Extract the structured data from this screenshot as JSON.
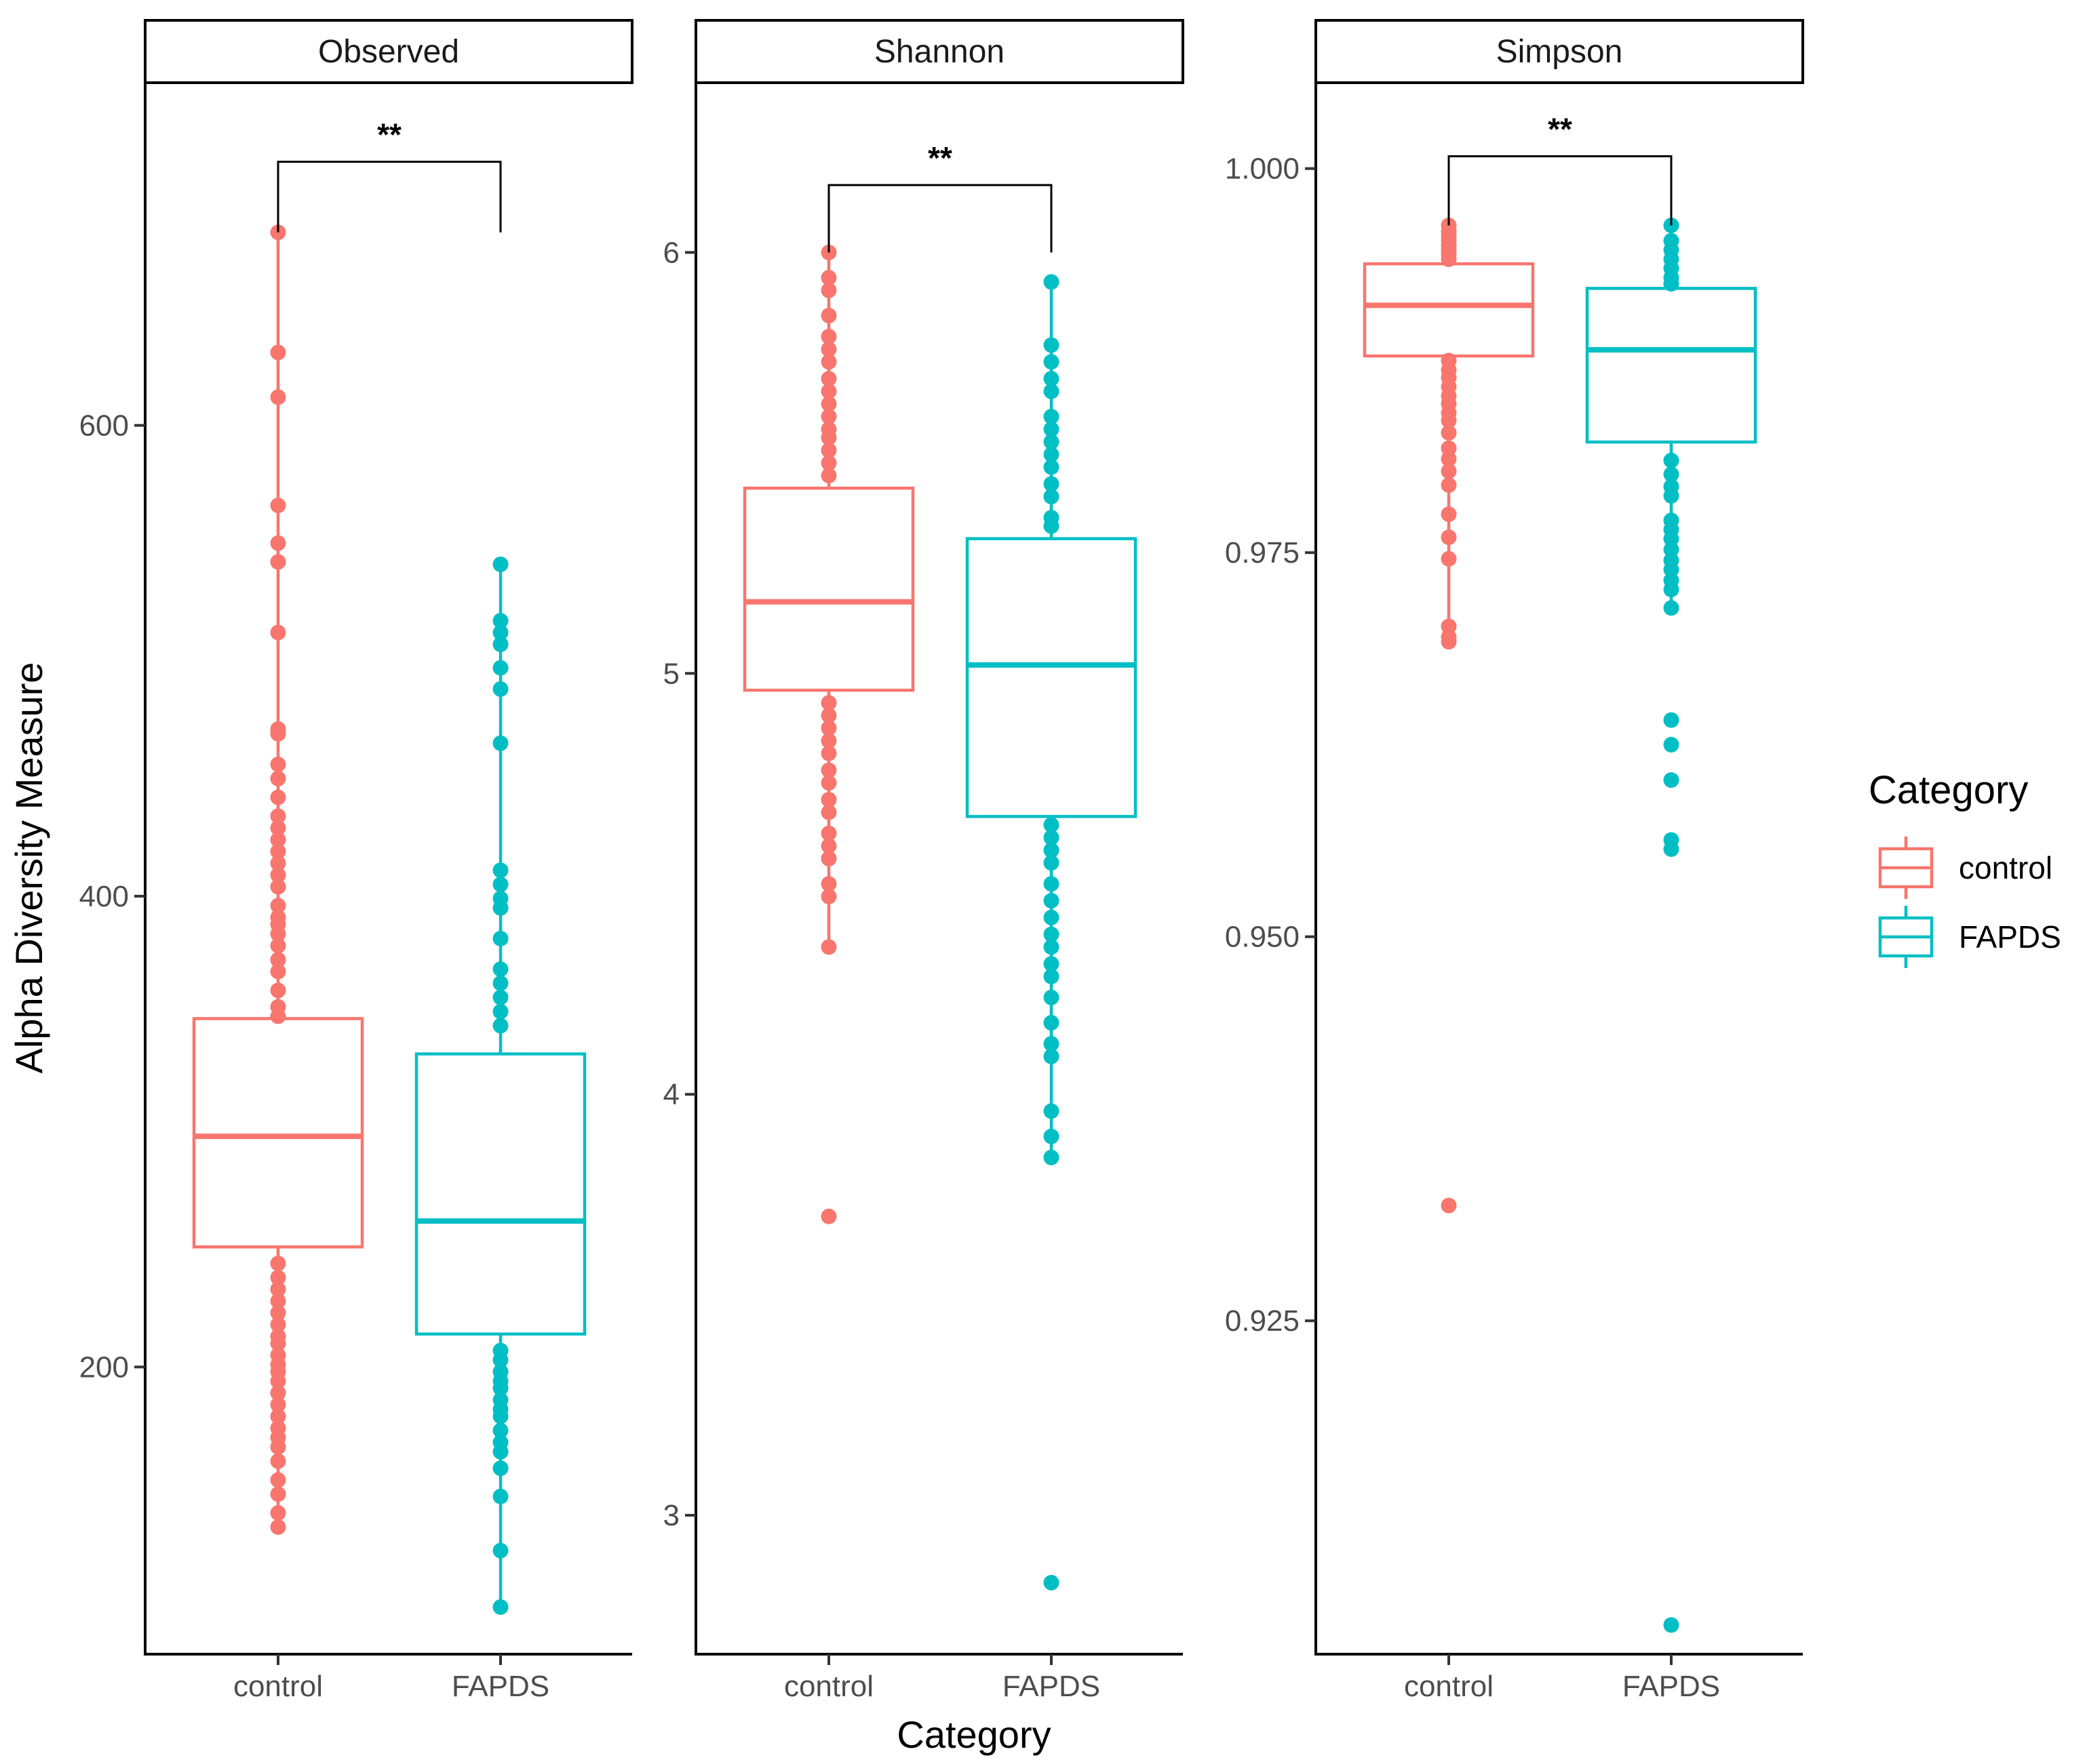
{
  "chart_data": {
    "type": "boxplot",
    "xlabel": "Category",
    "ylabel": "Alpha Diversity Measure",
    "categories": [
      "control",
      "FAPDS"
    ],
    "legend": {
      "title": "Category",
      "placement": "right",
      "entries": [
        {
          "label": "control",
          "color": "#F8766D"
        },
        {
          "label": "FAPDS",
          "color": "#00BFC4"
        }
      ]
    },
    "panels": [
      {
        "name": "Observed",
        "ylim": [
          78,
          745
        ],
        "ticks": [
          200,
          400,
          600
        ],
        "tick_labels": [
          "200",
          "400",
          "600"
        ],
        "significance": "**",
        "bracket_top": 712,
        "bracket_left_end": 682,
        "bracket_right_end": 682,
        "groups": [
          {
            "category": "control",
            "q1": 251,
            "median": 298,
            "q3": 348,
            "whisker_low": 132,
            "whisker_high": 682,
            "points": [
              682,
              631,
              612,
              566,
              550,
              542,
              512,
              471,
              469,
              456,
              450,
              442,
              434,
              429,
              424,
              419,
              414,
              409,
              404,
              396,
              391,
              388,
              384,
              379,
              373,
              368,
              360,
              353,
              349,
              244,
              238,
              233,
              228,
              223,
              218,
              213,
              210,
              205,
              201,
              198,
              194,
              189,
              184,
              179,
              174,
              170,
              166,
              160,
              152,
              146,
              138,
              132
            ]
          },
          {
            "category": "FAPDS",
            "q1": 214,
            "median": 262,
            "q3": 333,
            "whisker_low": 98,
            "whisker_high": 541,
            "points": [
              541,
              517,
              512,
              507,
              497,
              488,
              465,
              411,
              405,
              399,
              395,
              382,
              369,
              363,
              357,
              351,
              345,
              207,
              203,
              198,
              194,
              191,
              186,
              182,
              179,
              173,
              168,
              164,
              157,
              145,
              122,
              98
            ]
          }
        ]
      },
      {
        "name": "Shannon",
        "ylim": [
          2.67,
          6.4
        ],
        "ticks": [
          3,
          4,
          5,
          6
        ],
        "tick_labels": [
          "3",
          "4",
          "5",
          "6"
        ],
        "significance": "**",
        "bracket_top": 6.16,
        "bracket_left_end": 6.0,
        "bracket_right_end": 6.0,
        "groups": [
          {
            "category": "control",
            "q1": 4.96,
            "median": 5.17,
            "q3": 5.44,
            "whisker_low": 4.35,
            "whisker_high": 6.0,
            "points": [
              6.0,
              5.94,
              5.91,
              5.85,
              5.8,
              5.77,
              5.74,
              5.7,
              5.67,
              5.64,
              5.61,
              5.58,
              5.56,
              5.53,
              5.5,
              5.47,
              4.93,
              4.9,
              4.87,
              4.84,
              4.81,
              4.77,
              4.74,
              4.7,
              4.67,
              4.62,
              4.59,
              4.56,
              4.5,
              4.47,
              4.35,
              3.71
            ]
          },
          {
            "category": "FAPDS",
            "q1": 4.66,
            "median": 5.02,
            "q3": 5.32,
            "whisker_low": 3.85,
            "whisker_high": 5.93,
            "points": [
              5.93,
              5.78,
              5.74,
              5.7,
              5.67,
              5.61,
              5.58,
              5.55,
              5.52,
              5.49,
              5.45,
              5.42,
              5.37,
              5.35,
              4.64,
              4.61,
              4.58,
              4.55,
              4.5,
              4.46,
              4.42,
              4.38,
              4.35,
              4.31,
              4.28,
              4.23,
              4.17,
              4.12,
              4.09,
              3.96,
              3.9,
              3.85,
              2.84
            ]
          }
        ]
      },
      {
        "name": "Simpson",
        "ylim": [
          0.9033,
          1.0055
        ],
        "ticks": [
          0.925,
          0.95,
          0.975,
          1.0
        ],
        "tick_labels": [
          "0.925",
          "0.950",
          "0.975",
          "1.000"
        ],
        "significance": "**",
        "bracket_top": 1.0008,
        "bracket_left_end": 0.9963,
        "bracket_right_end": 0.9963,
        "groups": [
          {
            "category": "control",
            "q1": 0.9878,
            "median": 0.9911,
            "q3": 0.9938,
            "whisker_low": 0.9692,
            "whisker_high": 0.9963,
            "points": [
              0.9963,
              0.9959,
              0.9956,
              0.9953,
              0.995,
              0.9947,
              0.9944,
              0.9941,
              0.9875,
              0.9869,
              0.9864,
              0.9858,
              0.9852,
              0.9847,
              0.9841,
              0.9836,
              0.9828,
              0.9818,
              0.9811,
              0.9803,
              0.9794,
              0.9775,
              0.976,
              0.9746,
              0.9702,
              0.9695,
              0.9692,
              0.9325
            ]
          },
          {
            "category": "FAPDS",
            "q1": 0.9822,
            "median": 0.9882,
            "q3": 0.9922,
            "whisker_low": 0.9714,
            "whisker_high": 0.9963,
            "points": [
              0.9963,
              0.9953,
              0.9947,
              0.9941,
              0.9935,
              0.9929,
              0.9925,
              0.981,
              0.9801,
              0.9793,
              0.9787,
              0.9771,
              0.9765,
              0.9759,
              0.9752,
              0.9745,
              0.9739,
              0.9732,
              0.9726,
              0.9714,
              0.9641,
              0.9625,
              0.9602,
              0.9563,
              0.9557,
              0.9052
            ]
          }
        ]
      }
    ]
  }
}
